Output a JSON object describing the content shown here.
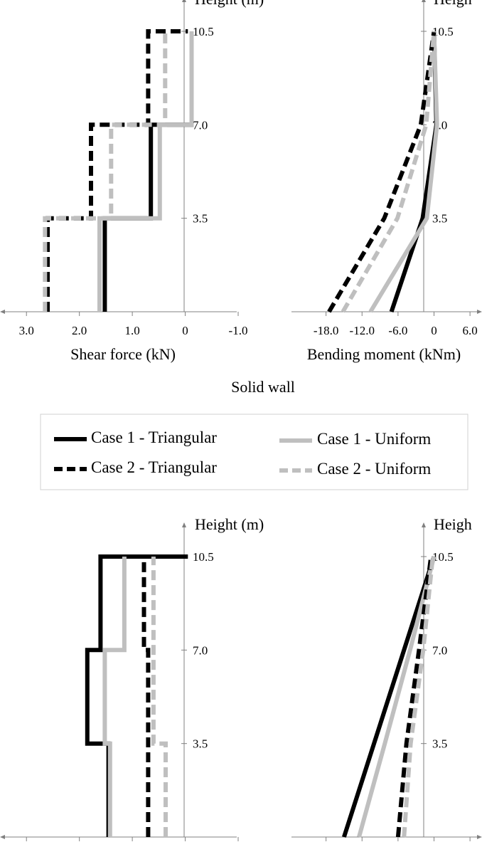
{
  "figure": {
    "caption": "Solid wall",
    "legend": [
      {
        "label": "Case 1 - Triangular",
        "color": "#000000",
        "dashed": false
      },
      {
        "label": "Case 1 - Uniform",
        "color": "#bfbfbf",
        "dashed": false
      },
      {
        "label": "Case 2 - Triangular",
        "color": "#000000",
        "dashed": true
      },
      {
        "label": "Case 2 - Uniform",
        "color": "#bfbfbf",
        "dashed": true
      }
    ]
  },
  "chart_data": [
    {
      "type": "line",
      "panel": "top-left",
      "ylabel": "Height (m)",
      "xlabel": "Shear force (kN)",
      "xlim": [
        3.5,
        -1.0
      ],
      "x_reversed": true,
      "x_ticks": [
        3.0,
        2.0,
        1.0,
        0.0,
        -1.0
      ],
      "x_tick_labels": [
        "3.0",
        "2.0",
        "1.0",
        "0",
        "-1.0"
      ],
      "ylim": [
        0,
        10.5
      ],
      "y_ticks": [
        3.5,
        7.0,
        10.5
      ],
      "y_tick_labels": [
        "3.5",
        "7.0",
        "10.5"
      ],
      "series": [
        {
          "name": "Case 1 - Triangular",
          "color": "#000000",
          "dashed": false,
          "points": [
            [
              1.52,
              0
            ],
            [
              1.52,
              3.5
            ],
            [
              0.65,
              3.5
            ],
            [
              0.65,
              7.0
            ],
            [
              -0.12,
              7.0
            ],
            [
              -0.12,
              10.5
            ]
          ]
        },
        {
          "name": "Case 1 - Uniform",
          "color": "#bfbfbf",
          "dashed": false,
          "points": [
            [
              1.62,
              0
            ],
            [
              1.62,
              3.5
            ],
            [
              0.48,
              3.5
            ],
            [
              0.48,
              7.0
            ],
            [
              -0.12,
              7.0
            ],
            [
              -0.12,
              10.5
            ]
          ]
        },
        {
          "name": "Case 2 - Triangular",
          "color": "#000000",
          "dashed": true,
          "points": [
            [
              2.6,
              0
            ],
            [
              2.6,
              3.5
            ],
            [
              1.78,
              3.5
            ],
            [
              1.78,
              7.0
            ],
            [
              0.7,
              7.0
            ],
            [
              0.7,
              10.5
            ],
            [
              -0.05,
              10.5
            ]
          ]
        },
        {
          "name": "Case 2 - Uniform",
          "color": "#bfbfbf",
          "dashed": true,
          "points": [
            [
              2.65,
              0
            ],
            [
              2.65,
              3.5
            ],
            [
              1.4,
              3.5
            ],
            [
              1.4,
              7.0
            ],
            [
              0.38,
              7.0
            ],
            [
              0.38,
              10.5
            ]
          ]
        }
      ]
    },
    {
      "type": "line",
      "panel": "top-right",
      "ylabel": "Heigh",
      "xlabel": "Bending moment (kNm)",
      "xlim": [
        -24.0,
        8.0
      ],
      "x_ticks": [
        -18.0,
        -12.0,
        -6.0,
        0.0,
        6.0
      ],
      "x_tick_labels": [
        "-18.0",
        "-12.0",
        "-6.0",
        "0",
        "6.0"
      ],
      "ylim": [
        0,
        10.5
      ],
      "y_ticks": [
        3.5,
        7.0,
        10.5
      ],
      "y_tick_labels": [
        "3.5",
        "7.0",
        "10.5"
      ],
      "series": [
        {
          "name": "Case 1 - Triangular",
          "color": "#000000",
          "dashed": false,
          "points": [
            [
              -7.1,
              0
            ],
            [
              -1.9,
              3.5
            ],
            [
              0.4,
              7.0
            ],
            [
              0,
              10.5
            ]
          ]
        },
        {
          "name": "Case 1 - Uniform",
          "color": "#bfbfbf",
          "dashed": false,
          "points": [
            [
              -10.6,
              0
            ],
            [
              -1.2,
              3.5
            ],
            [
              0.5,
              7.0
            ],
            [
              0,
              10.5
            ]
          ]
        },
        {
          "name": "Case 2 - Triangular",
          "color": "#000000",
          "dashed": true,
          "points": [
            [
              -17.5,
              0
            ],
            [
              -8.3,
              3.5
            ],
            [
              -2.2,
              7.0
            ],
            [
              0,
              10.5
            ]
          ]
        },
        {
          "name": "Case 2 - Uniform",
          "color": "#bfbfbf",
          "dashed": true,
          "points": [
            [
              -15.2,
              0
            ],
            [
              -6.1,
              3.5
            ],
            [
              -1.3,
              7.0
            ],
            [
              0,
              10.5
            ]
          ]
        }
      ]
    },
    {
      "type": "line",
      "panel": "bottom-left",
      "ylabel": "Height (m)",
      "xlabel": "",
      "xlim": [
        3.5,
        -1.0
      ],
      "x_reversed": true,
      "x_ticks": [
        3.0,
        2.0,
        1.0,
        0.0,
        -1.0
      ],
      "x_tick_labels": [],
      "ylim": [
        0,
        10.5
      ],
      "y_ticks": [
        3.5,
        7.0,
        10.5
      ],
      "y_tick_labels": [
        "3.5",
        "7.0",
        "10.5"
      ],
      "series": [
        {
          "name": "Case 1 - Triangular",
          "color": "#000000",
          "dashed": false,
          "points": [
            [
              1.45,
              0
            ],
            [
              1.45,
              3.5
            ],
            [
              1.85,
              3.5
            ],
            [
              1.85,
              7.0
            ],
            [
              1.6,
              7.0
            ],
            [
              1.6,
              10.5
            ],
            [
              -0.05,
              10.5
            ]
          ]
        },
        {
          "name": "Case 1 - Uniform",
          "color": "#bfbfbf",
          "dashed": false,
          "points": [
            [
              1.42,
              0
            ],
            [
              1.42,
              3.5
            ],
            [
              1.52,
              3.5
            ],
            [
              1.52,
              7.0
            ],
            [
              1.15,
              7.0
            ],
            [
              1.15,
              10.5
            ]
          ]
        },
        {
          "name": "Case 2 - Triangular",
          "color": "#000000",
          "dashed": true,
          "points": [
            [
              0.7,
              0
            ],
            [
              0.7,
              3.5
            ],
            [
              0.7,
              3.5
            ],
            [
              0.7,
              7.0
            ],
            [
              0.78,
              7.0
            ],
            [
              0.78,
              10.5
            ]
          ]
        },
        {
          "name": "Case 2 - Uniform",
          "color": "#bfbfbf",
          "dashed": true,
          "points": [
            [
              0.37,
              0
            ],
            [
              0.37,
              3.5
            ],
            [
              0.6,
              3.5
            ],
            [
              0.6,
              7.0
            ],
            [
              0.6,
              7.0
            ],
            [
              0.6,
              10.5
            ]
          ]
        }
      ]
    },
    {
      "type": "line",
      "panel": "bottom-right",
      "ylabel": "Heigh",
      "xlabel": "",
      "xlim": [
        -24.0,
        8.0
      ],
      "x_ticks": [
        -18.0,
        -12.0,
        -6.0,
        0.0,
        6.0
      ],
      "x_tick_labels": [],
      "ylim": [
        0,
        10.5
      ],
      "y_ticks": [
        3.5,
        7.0,
        10.5
      ],
      "y_tick_labels": [
        "3.5",
        "7.0",
        "10.5"
      ],
      "series": [
        {
          "name": "Case 1 - Triangular",
          "color": "#000000",
          "dashed": false,
          "points": [
            [
              -15.0,
              0
            ],
            [
              -10.0,
              3.5
            ],
            [
              -5.0,
              7.0
            ],
            [
              0,
              10.5
            ]
          ]
        },
        {
          "name": "Case 1 - Uniform",
          "color": "#bfbfbf",
          "dashed": false,
          "points": [
            [
              -12.5,
              0
            ],
            [
              -8.2,
              3.5
            ],
            [
              -4.0,
              7.0
            ],
            [
              0,
              10.5
            ]
          ]
        },
        {
          "name": "Case 2 - Triangular",
          "color": "#000000",
          "dashed": true,
          "points": [
            [
              -6.0,
              0
            ],
            [
              -4.6,
              3.5
            ],
            [
              -2.5,
              7.0
            ],
            [
              -0.5,
              10.5
            ]
          ]
        },
        {
          "name": "Case 2 - Uniform",
          "color": "#bfbfbf",
          "dashed": true,
          "points": [
            [
              -5.0,
              0
            ],
            [
              -3.9,
              3.5
            ],
            [
              -1.8,
              7.0
            ],
            [
              -0.2,
              10.5
            ]
          ]
        }
      ]
    }
  ]
}
